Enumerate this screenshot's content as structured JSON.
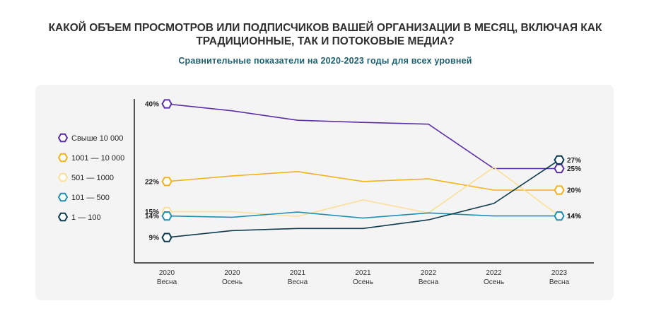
{
  "title": "Какой объем просмотров или подписчиков вашей организации в месяц, включая как традиционные, так и потоковые медиа?",
  "subtitle": "Сравнительные показатели на 2020-2023 годы для всех уровней",
  "chart_data": {
    "type": "line",
    "categories": [
      [
        "2020",
        "Весна"
      ],
      [
        "2020",
        "Осень"
      ],
      [
        "2021",
        "Весна"
      ],
      [
        "2021",
        "Осень"
      ],
      [
        "2022",
        "Весна"
      ],
      [
        "2022",
        "Осень"
      ],
      [
        "2023",
        "Весна"
      ]
    ],
    "ylim": [
      0,
      40
    ],
    "grid": false,
    "legend_position": "left",
    "series": [
      {
        "name": "Свыше 10 000",
        "color": "#5b2fa8",
        "values": [
          40,
          38.4,
          36.2,
          35.7,
          35.3,
          25,
          25
        ],
        "start_label": "40%",
        "end_label": "25%"
      },
      {
        "name": "1001 — 10 000",
        "color": "#f2b21c",
        "values": [
          22,
          23.3,
          24.3,
          22,
          22.6,
          20,
          20
        ],
        "start_label": "22%",
        "end_label": "20%"
      },
      {
        "name": "501 — 1000",
        "color": "#fbe09a",
        "values": [
          15,
          15,
          13.9,
          17.7,
          14.7,
          25.3,
          14
        ],
        "start_label": "15%",
        "end_label": "14%"
      },
      {
        "name": "101 — 500",
        "color": "#1f8fb4",
        "values": [
          14,
          13.7,
          14.9,
          13.5,
          14.7,
          14,
          14
        ],
        "start_label": "14%",
        "end_label": "14%"
      },
      {
        "name": "1 — 100",
        "color": "#0d3b4f",
        "values": [
          9,
          10.6,
          11.1,
          11.1,
          13.1,
          16.9,
          27
        ],
        "start_label": "9%",
        "end_label": "27%"
      }
    ]
  }
}
